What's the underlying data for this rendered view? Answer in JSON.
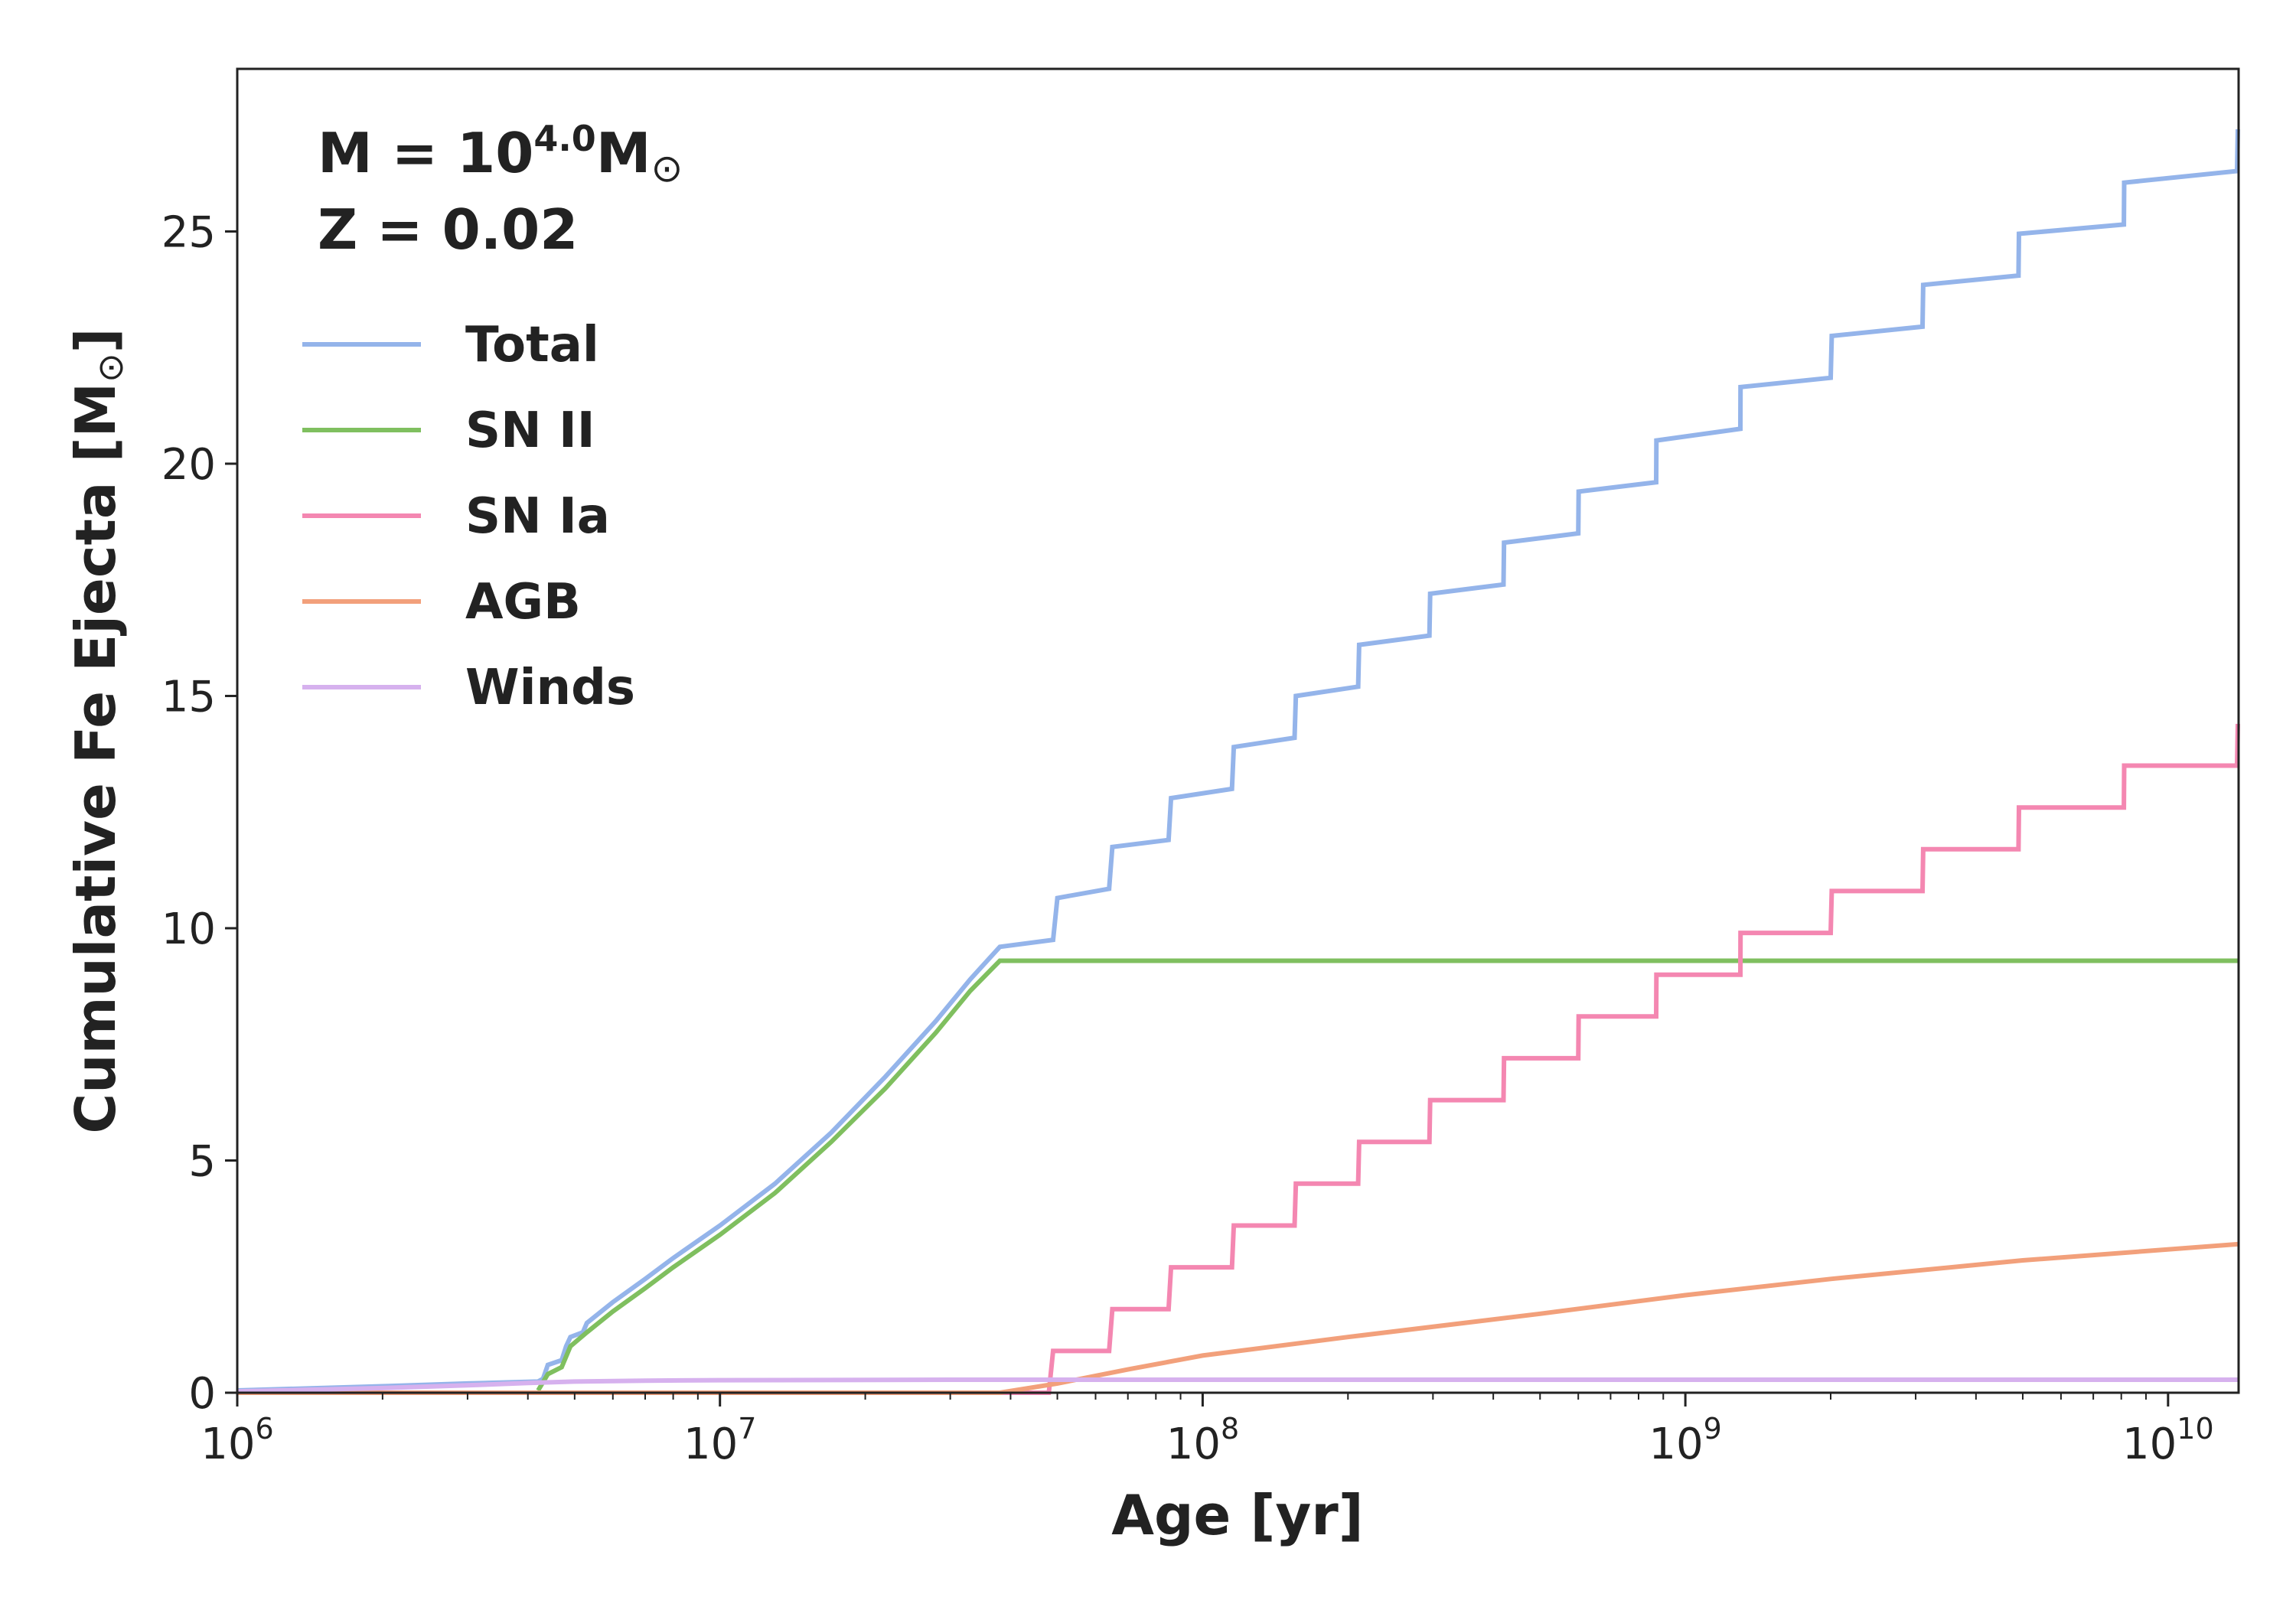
{
  "chart_data": {
    "type": "line",
    "xlabel": "Age [yr]",
    "ylabel": "Cumulative Fe Ejecta [M",
    "ylabel_sun": "⊙",
    "ylabel_close": "]",
    "xscale": "log",
    "xlim": [
      1000000,
      14000000000
    ],
    "ylim": [
      0,
      28.5
    ],
    "grid": false,
    "x_ticks": [
      {
        "value": 1000000,
        "base": "10",
        "exp": "6"
      },
      {
        "value": 10000000,
        "base": "10",
        "exp": "7"
      },
      {
        "value": 100000000,
        "base": "10",
        "exp": "8"
      },
      {
        "value": 1000000000,
        "base": "10",
        "exp": "9"
      },
      {
        "value": 10000000000,
        "base": "10",
        "exp": "10"
      }
    ],
    "y_ticks": [
      {
        "value": 0,
        "label": "0"
      },
      {
        "value": 5,
        "label": "5"
      },
      {
        "value": 10,
        "label": "10"
      },
      {
        "value": 15,
        "label": "15"
      },
      {
        "value": 20,
        "label": "20"
      },
      {
        "value": 25,
        "label": "25"
      }
    ],
    "annotation": {
      "mass_prefix": "M = 10",
      "mass_exp": "4.0",
      "mass_unit": "M",
      "mass_sun": "⊙",
      "metallicity": "Z = 0.02"
    },
    "legend_position": "upper-left",
    "series": [
      {
        "name": "Total",
        "color": "#94b4ea",
        "step": true,
        "points": [
          [
            1000000,
            0.05
          ],
          [
            2000000,
            0.14
          ],
          [
            3000000,
            0.2
          ],
          [
            4200000,
            0.24
          ],
          [
            4300000,
            0.3
          ],
          [
            4400000,
            0.6
          ],
          [
            4700000,
            0.7
          ],
          [
            4800000,
            1.0
          ],
          [
            4900000,
            1.2
          ],
          [
            5200000,
            1.3
          ],
          [
            5300000,
            1.5
          ],
          [
            6000000,
            1.95
          ],
          [
            7000000,
            2.45
          ],
          [
            8000000,
            2.9
          ],
          [
            10000000,
            3.6
          ],
          [
            13000000,
            4.5
          ],
          [
            17000000,
            5.6
          ],
          [
            22000000,
            6.8
          ],
          [
            28000000,
            8.0
          ],
          [
            33000000,
            8.9
          ],
          [
            38000000,
            9.6
          ],
          [
            49000000,
            9.75
          ],
          [
            50000000,
            10.65
          ],
          [
            64000000,
            10.85
          ],
          [
            65000000,
            11.75
          ],
          [
            85000000,
            11.9
          ],
          [
            86000000,
            12.8
          ],
          [
            115000000,
            13.0
          ],
          [
            116000000,
            13.9
          ],
          [
            155000000,
            14.1
          ],
          [
            156000000,
            15.0
          ],
          [
            210000000,
            15.2
          ],
          [
            211000000,
            16.1
          ],
          [
            295000000,
            16.3
          ],
          [
            296000000,
            17.2
          ],
          [
            420000000,
            17.4
          ],
          [
            421000000,
            18.3
          ],
          [
            600000000,
            18.5
          ],
          [
            601000000,
            19.4
          ],
          [
            870000000,
            19.6
          ],
          [
            871000000,
            20.5
          ],
          [
            1300000000,
            20.75
          ],
          [
            1301000000,
            21.65
          ],
          [
            2000000000,
            21.85
          ],
          [
            2010000000,
            22.75
          ],
          [
            3100000000,
            22.95
          ],
          [
            3110000000,
            23.85
          ],
          [
            4900000000,
            24.05
          ],
          [
            4910000000,
            24.95
          ],
          [
            8100000000,
            25.15
          ],
          [
            8110000000,
            26.05
          ],
          [
            13900000000,
            26.3
          ],
          [
            13950000000,
            27.2
          ]
        ]
      },
      {
        "name": "SN II",
        "color": "#7fbf5f",
        "step": false,
        "points": [
          [
            4200000,
            0.05
          ],
          [
            4400000,
            0.4
          ],
          [
            4700000,
            0.55
          ],
          [
            4900000,
            1.0
          ],
          [
            5300000,
            1.3
          ],
          [
            6000000,
            1.75
          ],
          [
            7000000,
            2.25
          ],
          [
            8000000,
            2.7
          ],
          [
            10000000,
            3.4
          ],
          [
            13000000,
            4.3
          ],
          [
            17000000,
            5.4
          ],
          [
            22000000,
            6.55
          ],
          [
            28000000,
            7.75
          ],
          [
            33000000,
            8.65
          ],
          [
            38000000,
            9.3
          ],
          [
            14000000000,
            9.3
          ]
        ]
      },
      {
        "name": "SN Ia",
        "color": "#f487b1",
        "step": true,
        "points": [
          [
            1000000,
            0.0
          ],
          [
            48000000,
            0.0
          ],
          [
            49000000,
            0.9
          ],
          [
            64000000,
            0.9
          ],
          [
            65000000,
            1.8
          ],
          [
            85000000,
            1.8
          ],
          [
            86000000,
            2.7
          ],
          [
            115000000,
            2.7
          ],
          [
            116000000,
            3.6
          ],
          [
            155000000,
            3.6
          ],
          [
            156000000,
            4.5
          ],
          [
            210000000,
            4.5
          ],
          [
            211000000,
            5.4
          ],
          [
            295000000,
            5.4
          ],
          [
            296000000,
            6.3
          ],
          [
            420000000,
            6.3
          ],
          [
            421000000,
            7.2
          ],
          [
            600000000,
            7.2
          ],
          [
            601000000,
            8.1
          ],
          [
            870000000,
            8.1
          ],
          [
            871000000,
            9.0
          ],
          [
            1300000000,
            9.0
          ],
          [
            1301000000,
            9.9
          ],
          [
            2000000000,
            9.9
          ],
          [
            2010000000,
            10.8
          ],
          [
            3100000000,
            10.8
          ],
          [
            3110000000,
            11.7
          ],
          [
            4900000000,
            11.7
          ],
          [
            4910000000,
            12.6
          ],
          [
            8100000000,
            12.6
          ],
          [
            8110000000,
            13.5
          ],
          [
            13900000000,
            13.5
          ],
          [
            13950000000,
            14.4
          ]
        ]
      },
      {
        "name": "AGB",
        "color": "#f2a07b",
        "step": false,
        "points": [
          [
            1000000,
            0.0
          ],
          [
            38000000,
            0.0
          ],
          [
            50000000,
            0.2
          ],
          [
            70000000,
            0.5
          ],
          [
            100000000,
            0.8
          ],
          [
            200000000,
            1.2
          ],
          [
            500000000,
            1.7
          ],
          [
            1000000000,
            2.1
          ],
          [
            2000000000,
            2.45
          ],
          [
            5000000000,
            2.85
          ],
          [
            14000000000,
            3.2
          ]
        ]
      },
      {
        "name": "Winds",
        "color": "#d6b1ee",
        "step": false,
        "points": [
          [
            1000000,
            0.03
          ],
          [
            2000000,
            0.1
          ],
          [
            3000000,
            0.16
          ],
          [
            4000000,
            0.21
          ],
          [
            5000000,
            0.24
          ],
          [
            7000000,
            0.26
          ],
          [
            10000000,
            0.27
          ],
          [
            30000000,
            0.28
          ],
          [
            14000000000,
            0.28
          ]
        ]
      }
    ]
  }
}
